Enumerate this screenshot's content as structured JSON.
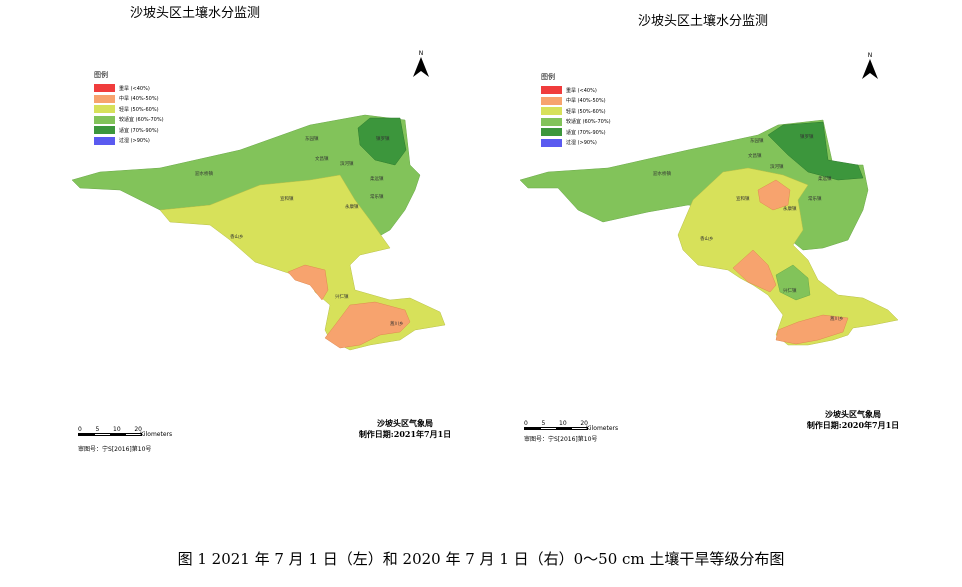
{
  "panels": [
    {
      "title": "沙坡头区土壤水分监测",
      "legend_title": "图例",
      "legend": [
        {
          "label": "重旱 (<40%)",
          "color": "#f03c3c"
        },
        {
          "label": "中旱 (40%-50%)",
          "color": "#f7a36e"
        },
        {
          "label": "轻旱 (50%-60%)",
          "color": "#d7e15a"
        },
        {
          "label": "较适宜 (60%-70%)",
          "color": "#82c35a"
        },
        {
          "label": "适宜 (70%-90%)",
          "color": "#3c963c"
        },
        {
          "label": "过湿 (>90%)",
          "color": "#5a5af0"
        }
      ],
      "north": "N",
      "scale_ticks": [
        "0",
        "5",
        "10",
        "20"
      ],
      "scale_unit": "Kilometers",
      "approval": "审图号：宁S[2016]第10号",
      "agency": "沙坡头区气象局",
      "date": "制作日期:2021年7月1日"
    },
    {
      "title": "沙坡头区土壤水分监测",
      "legend_title": "图例",
      "legend": [
        {
          "label": "重旱 (<40%)",
          "color": "#f03c3c"
        },
        {
          "label": "中旱 (40%-50%)",
          "color": "#f7a36e"
        },
        {
          "label": "轻旱 (50%-60%)",
          "color": "#d7e15a"
        },
        {
          "label": "较适宜 (60%-70%)",
          "color": "#82c35a"
        },
        {
          "label": "适宜 (70%-90%)",
          "color": "#3c963c"
        },
        {
          "label": "过湿 (>90%)",
          "color": "#5a5af0"
        }
      ],
      "north": "N",
      "scale_ticks": [
        "0",
        "5",
        "10",
        "20"
      ],
      "scale_unit": "Kilometers",
      "approval": "审图号：宁S[2016]第10号",
      "agency": "沙坡头区气象局",
      "date": "制作日期:2020年7月1日"
    }
  ],
  "towns": {
    "north": "镇罗镇",
    "dongyuan": "东园镇",
    "xingren": "兴仁镇",
    "changle": "常乐镇",
    "xiangshan": "香山乡",
    "xuanhe": "宣和镇",
    "yongkang": "永康镇",
    "binhe": "滨河镇",
    "wenchang": "文昌镇",
    "rouyuan": "柔远镇",
    "diqiao": "迎水桥镇",
    "zhenluo2": "镇罗镇",
    "shuxian": "蒿川乡"
  },
  "caption": "图 1 2021 年 7 月 1 日（左）和 2020 年 7 月 1 日（右）0～50 cm 土壤干旱等级分布图"
}
